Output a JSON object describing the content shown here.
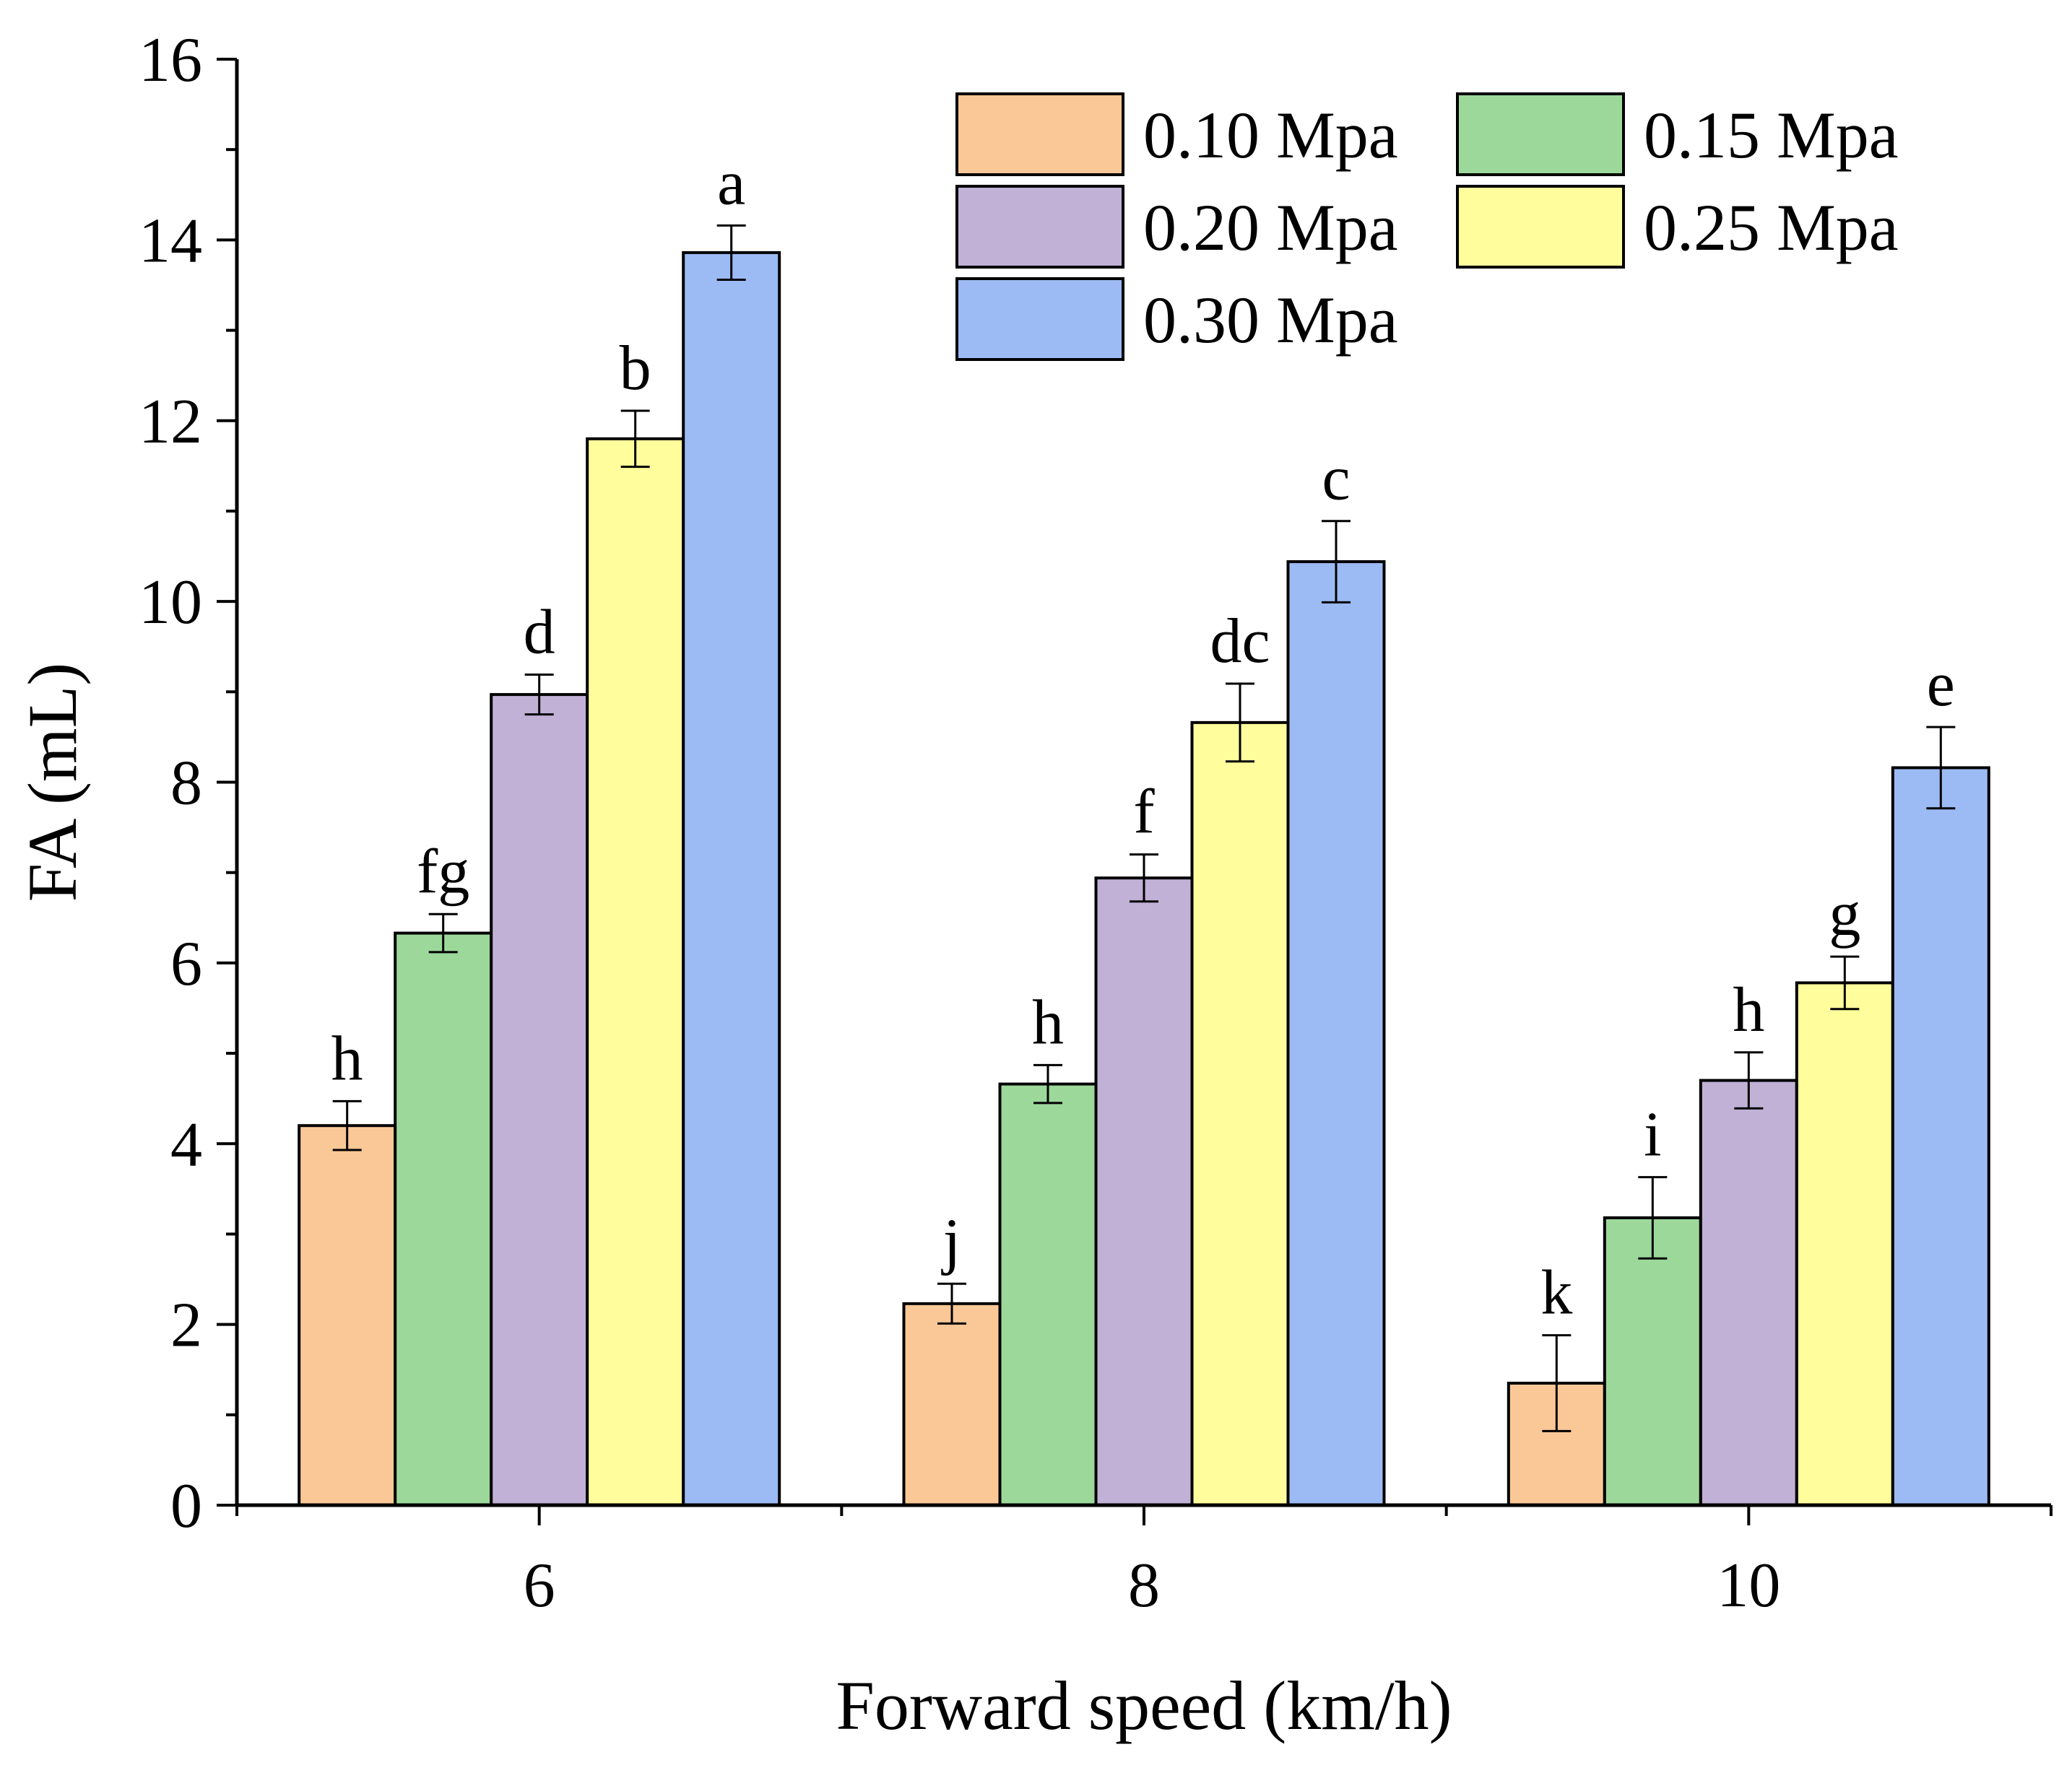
{
  "chart_data": {
    "type": "bar",
    "title": "",
    "xlabel": "Forward speed (km/h)",
    "ylabel": "FA (mL)",
    "ylim": [
      0,
      16
    ],
    "yticks": [
      "0",
      "2",
      "4",
      "6",
      "8",
      "10",
      "12",
      "14",
      "16"
    ],
    "categories": [
      "6",
      "8",
      "10"
    ],
    "legend_position": "top-right",
    "grid": false,
    "series": [
      {
        "name": "0.10 Mpa",
        "color": "#FAC897",
        "values": [
          4.2,
          2.23,
          1.35
        ],
        "errors": [
          0.27,
          0.22,
          0.53
        ],
        "labels": [
          "h",
          "j",
          "k"
        ]
      },
      {
        "name": "0.15 Mpa",
        "color": "#9DD89B",
        "values": [
          6.33,
          4.66,
          3.18
        ],
        "errors": [
          0.21,
          0.21,
          0.45
        ],
        "labels": [
          "fg",
          "h",
          "i"
        ]
      },
      {
        "name": "0.20 Mpa",
        "color": "#C1B1D6",
        "values": [
          8.97,
          6.94,
          4.7
        ],
        "errors": [
          0.22,
          0.26,
          0.31
        ],
        "labels": [
          "d",
          "f",
          "h"
        ]
      },
      {
        "name": "0.25 Mpa",
        "color": "#FFFD9C",
        "values": [
          11.8,
          8.66,
          5.78
        ],
        "errors": [
          0.31,
          0.43,
          0.29
        ],
        "labels": [
          "b",
          "dc",
          "g"
        ]
      },
      {
        "name": "0.30 Mpa",
        "color": "#9CBAF3",
        "values": [
          13.86,
          10.44,
          8.16
        ],
        "errors": [
          0.3,
          0.45,
          0.45
        ],
        "labels": [
          "a",
          "c",
          "e"
        ]
      }
    ]
  }
}
